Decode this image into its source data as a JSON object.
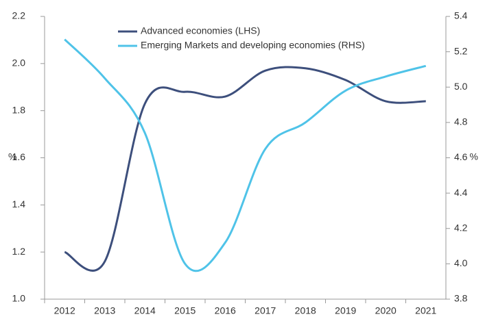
{
  "chart_data": {
    "type": "line",
    "categories": [
      "2012",
      "2013",
      "2014",
      "2015",
      "2016",
      "2017",
      "2018",
      "2019",
      "2020",
      "2021"
    ],
    "series": [
      {
        "name": "Advanced economies (LHS)",
        "color": "#3d4f7c",
        "values": [
          1.2,
          1.16,
          1.83,
          1.88,
          1.86,
          1.97,
          1.98,
          1.93,
          1.84,
          1.84
        ]
      },
      {
        "name": "Emerging Markets and developing economies (RHS)",
        "color": "#4fc3e8",
        "axis": "y2",
        "values": [
          5.27,
          5.05,
          4.74,
          4.0,
          4.12,
          4.65,
          4.8,
          4.98,
          5.06,
          5.12
        ]
      }
    ],
    "ylabel": "%",
    "y2label": "%",
    "ylim": [
      1.0,
      2.2
    ],
    "yticks": [
      {
        "value": 1,
        "label": "1.0"
      },
      1.2,
      1.4,
      1.6,
      1.8,
      {
        "value": 2,
        "label": "2.0"
      },
      2.2
    ],
    "y2lim": [
      3.8,
      5.4
    ],
    "y2ticks": [
      3.8,
      {
        "value": 4,
        "label": "4.0"
      },
      4.2,
      4.4,
      4.6,
      4.8,
      {
        "value": 5,
        "label": "5.0"
      },
      5.2,
      5.4
    ],
    "grid": false
  }
}
